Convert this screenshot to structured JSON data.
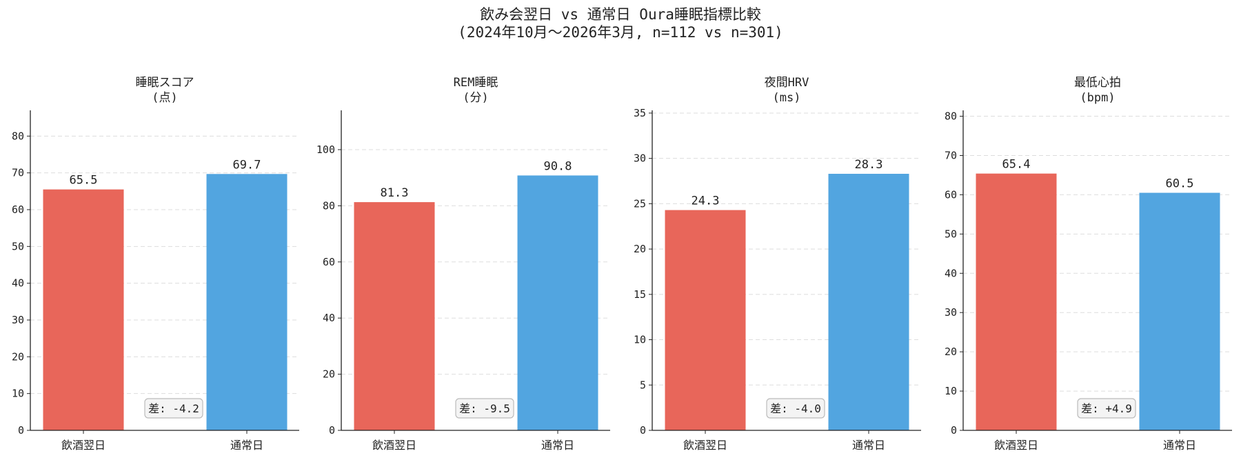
{
  "figure": {
    "title_line1": "飲み会翌日 vs 通常日 Oura睡眠指標比較",
    "title_line2": "(2024年10月～2026年3月, n=112 vs n=301)"
  },
  "colors": {
    "drink": "#e8665a",
    "normal": "#52a5e0",
    "grid": "#dddddd",
    "diff_bg": "#f4f4f4",
    "diff_border": "#bbbbbb"
  },
  "chart_data": [
    {
      "type": "bar",
      "title": "睡眠スコア",
      "unit": "(点)",
      "categories": [
        "飲酒翌日",
        "通常日"
      ],
      "values": [
        65.5,
        69.7
      ],
      "value_labels": [
        "65.5",
        "69.7"
      ],
      "ylim": [
        0,
        87
      ],
      "yticks": [
        0,
        10,
        20,
        30,
        40,
        50,
        60,
        70,
        80
      ],
      "diff": "差: -4.2",
      "grid": true
    },
    {
      "type": "bar",
      "title": "REM睡眠",
      "unit": "(分)",
      "categories": [
        "飲酒翌日",
        "通常日"
      ],
      "values": [
        81.3,
        90.8
      ],
      "value_labels": [
        "81.3",
        "90.8"
      ],
      "ylim": [
        0,
        114
      ],
      "yticks": [
        0,
        20,
        40,
        60,
        80,
        100
      ],
      "diff": "差: -9.5",
      "grid": true
    },
    {
      "type": "bar",
      "title": "夜間HRV",
      "unit": "(ms)",
      "categories": [
        "飲酒翌日",
        "通常日"
      ],
      "values": [
        24.3,
        28.3
      ],
      "value_labels": [
        "24.3",
        "28.3"
      ],
      "ylim": [
        0,
        35.3
      ],
      "yticks": [
        0,
        5,
        10,
        15,
        20,
        25,
        30,
        35
      ],
      "diff": "差: -4.0",
      "grid": true
    },
    {
      "type": "bar",
      "title": "最低心拍",
      "unit": "(bpm)",
      "categories": [
        "飲酒翌日",
        "通常日"
      ],
      "values": [
        65.4,
        60.5
      ],
      "value_labels": [
        "65.4",
        "60.5"
      ],
      "ylim": [
        0,
        81.5
      ],
      "yticks": [
        0,
        10,
        20,
        30,
        40,
        50,
        60,
        70,
        80
      ],
      "diff": "差: +4.9",
      "grid": true
    }
  ]
}
